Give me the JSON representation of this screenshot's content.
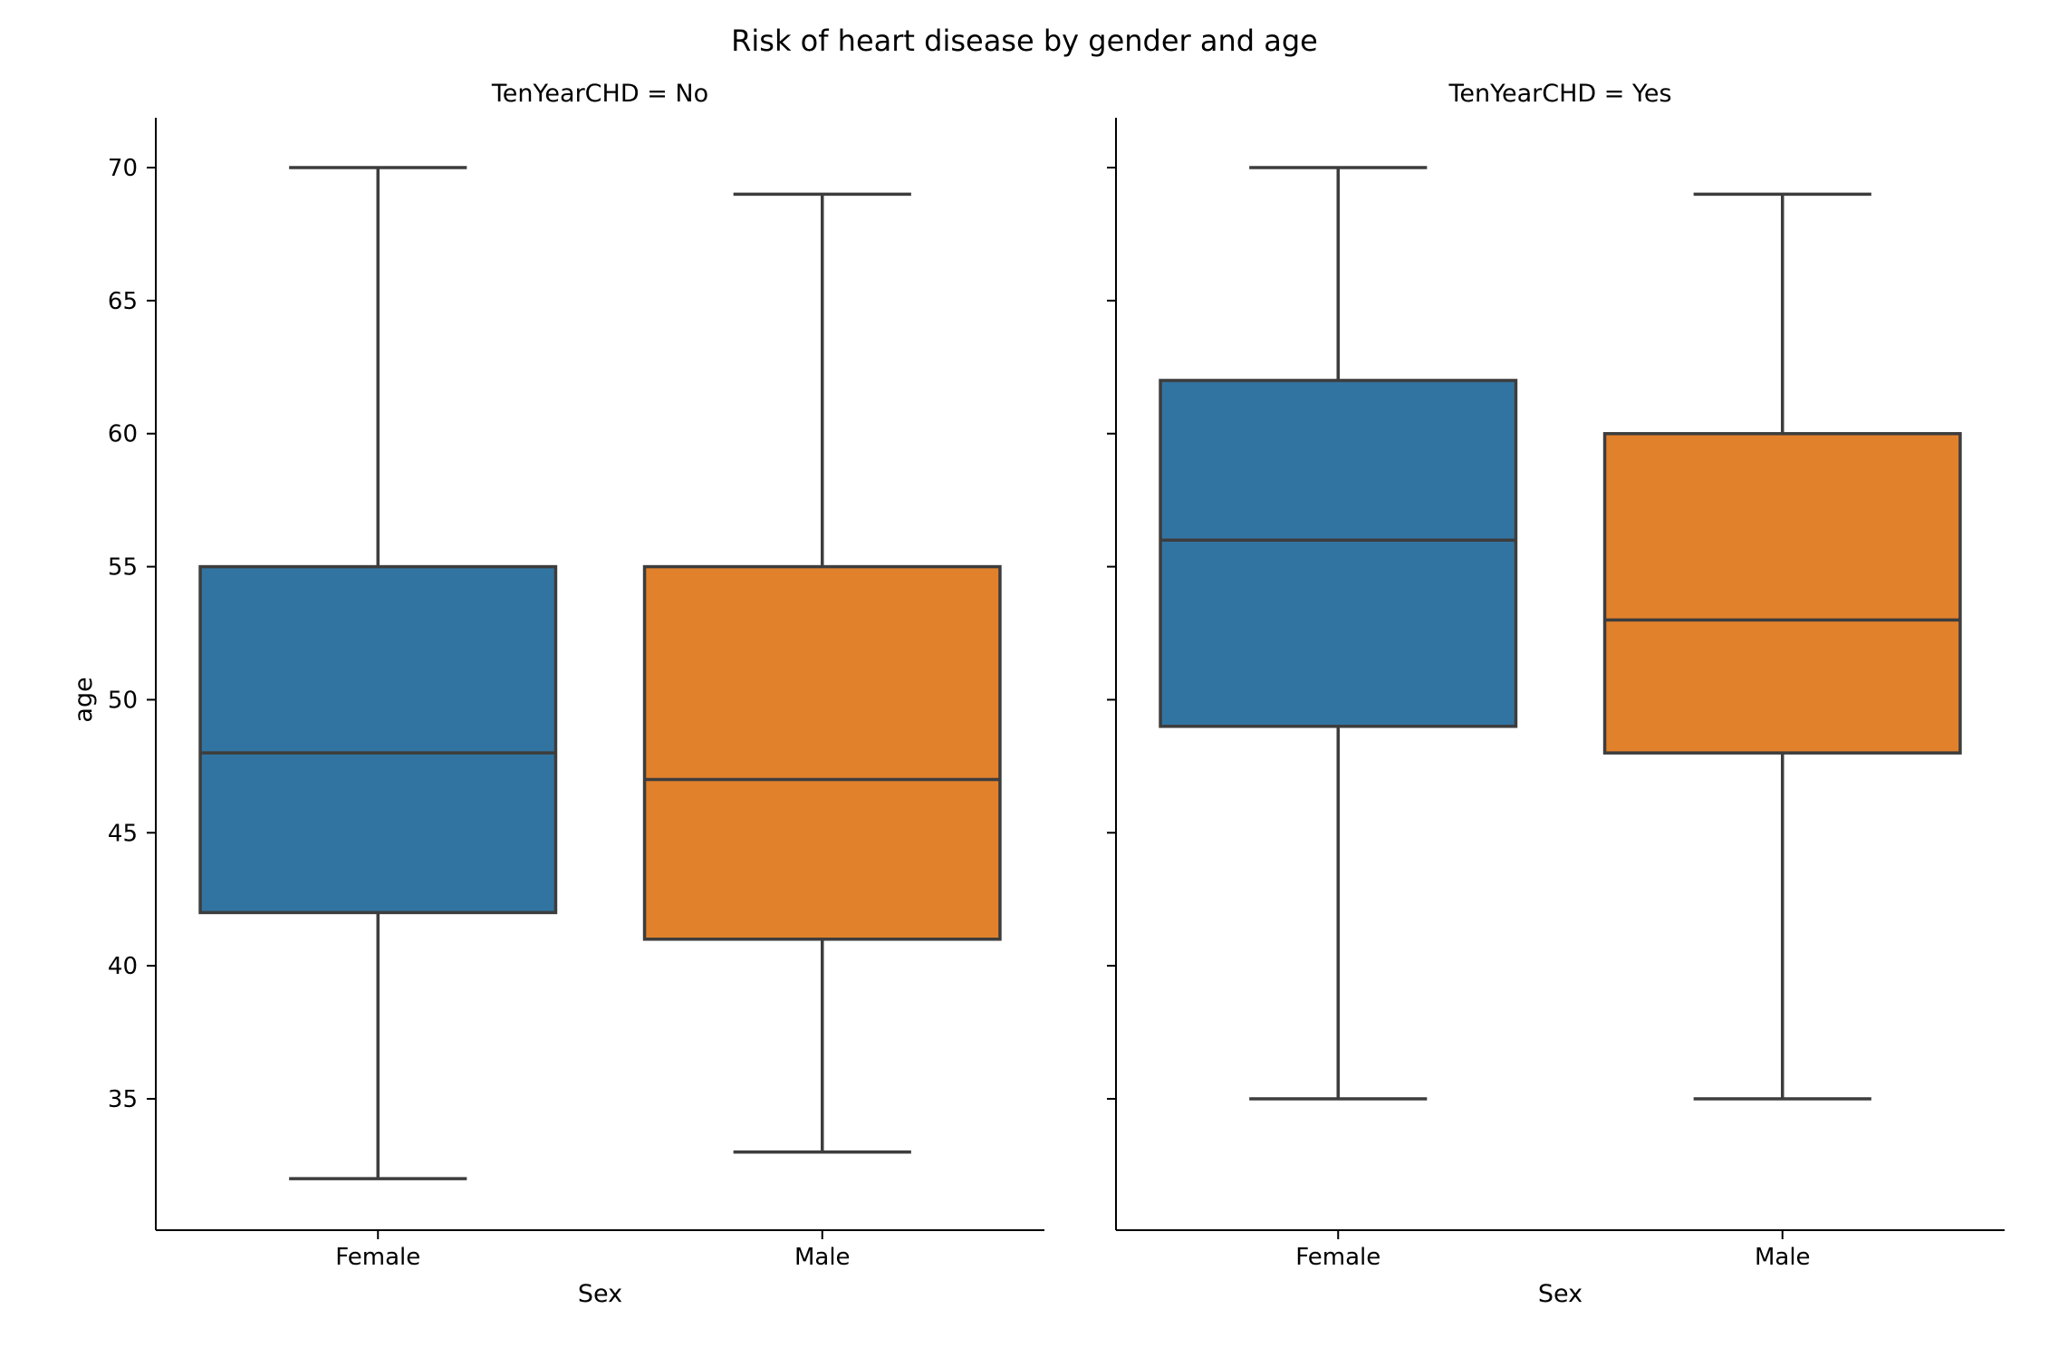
{
  "chart_data": {
    "type": "box",
    "title": "Risk of heart disease by gender and age",
    "xlabel": "Sex",
    "ylabel": "age",
    "ylim": [
      30,
      72
    ],
    "yticks": [
      35,
      40,
      45,
      50,
      55,
      60,
      65,
      70
    ],
    "categories": [
      "Female",
      "Male"
    ],
    "colors": {
      "Female": "#3274a1",
      "Male": "#e1812c",
      "line": "#3d3d3d"
    },
    "grid": false,
    "panels": [
      {
        "title": "TenYearCHD = No",
        "boxes": [
          {
            "category": "Female",
            "whisker_low": 32,
            "q1": 42,
            "median": 48,
            "q3": 55,
            "whisker_high": 70
          },
          {
            "category": "Male",
            "whisker_low": 33,
            "q1": 41,
            "median": 47,
            "q3": 55,
            "whisker_high": 69
          }
        ]
      },
      {
        "title": "TenYearCHD = Yes",
        "boxes": [
          {
            "category": "Female",
            "whisker_low": 35,
            "q1": 49,
            "median": 56,
            "q3": 62,
            "whisker_high": 70
          },
          {
            "category": "Male",
            "whisker_low": 35,
            "q1": 48,
            "median": 53,
            "q3": 60,
            "whisker_high": 69
          }
        ]
      }
    ]
  }
}
